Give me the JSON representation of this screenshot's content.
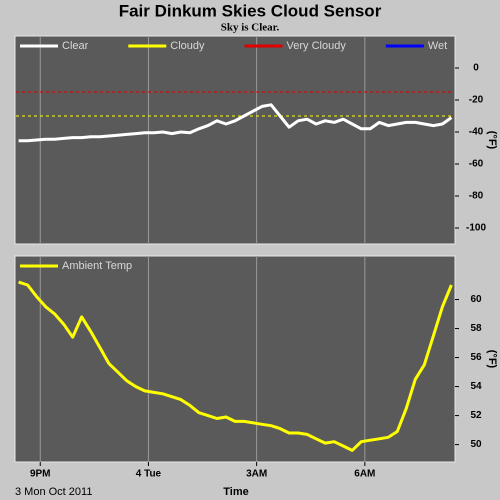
{
  "chart_data": [
    {
      "type": "line",
      "title": "Fair Dinkum Skies Cloud Sensor",
      "subtitle": "Sky is Clear.",
      "y_label": "(°F)",
      "x": [
        20.4,
        20.65,
        20.9,
        21.15,
        21.4,
        21.65,
        21.9,
        22.15,
        22.4,
        22.65,
        22.9,
        23.15,
        23.4,
        23.65,
        23.9,
        24.15,
        24.4,
        24.65,
        24.9,
        25.15,
        25.4,
        25.65,
        25.9,
        26.15,
        26.4,
        26.65,
        26.9,
        27.15,
        27.4,
        27.65,
        27.9,
        28.15,
        28.4,
        28.65,
        28.9,
        29.15,
        29.4,
        29.65,
        29.9,
        30.15,
        30.4,
        30.65,
        30.9,
        31.15,
        31.4,
        31.65,
        31.9,
        32.15,
        32.4
      ],
      "series": [
        {
          "name": "Clear",
          "color": "#ffffff",
          "values": [
            -45.5,
            -45.5,
            -45,
            -44.5,
            -44.5,
            -44,
            -43.5,
            -43.5,
            -43,
            -43,
            -42.5,
            -42,
            -41.5,
            -41,
            -40.5,
            -40.5,
            -40,
            -41,
            -40,
            -40.5,
            -38,
            -36,
            -33,
            -35,
            -33,
            -30,
            -27,
            -24,
            -23,
            -30,
            -37,
            -33,
            -32,
            -35,
            -33,
            -34,
            -32,
            -35,
            -38,
            -38,
            -34,
            -36,
            -35,
            -34,
            -34,
            -35,
            -36,
            -35,
            -31
          ]
        }
      ],
      "thresholds": [
        {
          "name": "Cloudy",
          "color": "#ffff00",
          "value": -30
        },
        {
          "name": "Very Cloudy",
          "color": "#e00000",
          "value": -15
        },
        {
          "name": "Wet",
          "color": "#0000ff"
        }
      ],
      "xlim": [
        20.3,
        32.5
      ],
      "xticks": [
        21,
        24,
        27,
        30
      ],
      "ylim": [
        -110,
        20
      ],
      "yticks": [
        0,
        -20,
        -40,
        -60,
        -80,
        -100
      ]
    },
    {
      "type": "line",
      "y_label": "(°F)",
      "x_label": "Time",
      "date_label": "3 Mon Oct 2011",
      "x": [
        20.4,
        20.65,
        20.9,
        21.15,
        21.4,
        21.65,
        21.9,
        22.15,
        22.4,
        22.65,
        22.9,
        23.15,
        23.4,
        23.65,
        23.9,
        24.15,
        24.4,
        24.65,
        24.9,
        25.15,
        25.4,
        25.65,
        25.9,
        26.15,
        26.4,
        26.65,
        26.9,
        27.15,
        27.4,
        27.65,
        27.9,
        28.15,
        28.4,
        28.65,
        28.9,
        29.15,
        29.4,
        29.65,
        29.9,
        30.15,
        30.4,
        30.65,
        30.9,
        31.15,
        31.4,
        31.65,
        31.9,
        32.15,
        32.4
      ],
      "series": [
        {
          "name": "Ambient Temp",
          "color": "#ffff00",
          "values": [
            61.2,
            61,
            60.2,
            59.5,
            59,
            58.3,
            57.4,
            58.8,
            57.8,
            56.7,
            55.6,
            55,
            54.4,
            54,
            53.7,
            53.6,
            53.5,
            53.3,
            53.1,
            52.7,
            52.2,
            52,
            51.8,
            51.9,
            51.6,
            51.6,
            51.5,
            51.4,
            51.3,
            51.1,
            50.8,
            50.8,
            50.7,
            50.4,
            50.1,
            50.2,
            49.9,
            49.6,
            50.2,
            50.3,
            50.4,
            50.5,
            50.9,
            52.5,
            54.5,
            55.5,
            57.5,
            59.5,
            61
          ]
        }
      ],
      "xlim": [
        20.3,
        32.5
      ],
      "xticks": [
        {
          "value": 21,
          "label": "9PM"
        },
        {
          "value": 24,
          "label": "4 Tue"
        },
        {
          "value": 27,
          "label": "3AM"
        },
        {
          "value": 30,
          "label": "6AM"
        }
      ],
      "ylim": [
        48.8,
        63
      ],
      "yticks": [
        60,
        58,
        56,
        54,
        52,
        50
      ]
    }
  ]
}
